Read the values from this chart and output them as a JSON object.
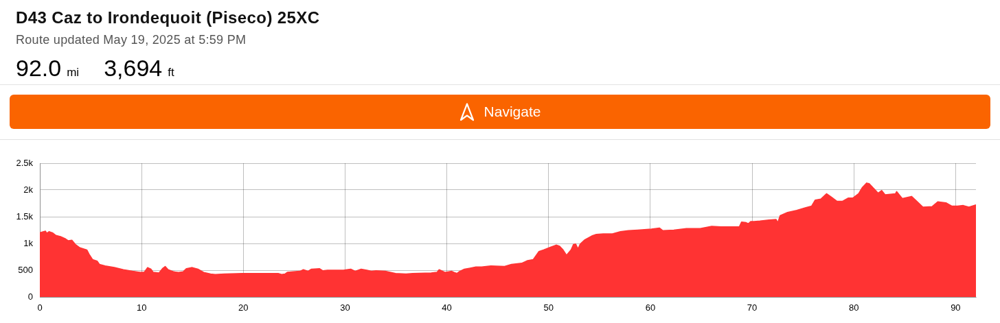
{
  "chart_data": {
    "type": "area",
    "title": "D43 Caz to Irondequoit (Piseco) 25XC",
    "subtitle": "Route updated May 19, 2025 at 5:59 PM",
    "annotations": [
      "92.0 mi",
      "3,694 ft",
      "Navigate"
    ],
    "x": [
      0,
      0.56,
      0.68,
      0.9,
      1.24,
      1.58,
      2.03,
      2.48,
      2.8,
      3.15,
      3.5,
      3.94,
      4.62,
      4.84,
      5.18,
      5.63,
      5.86,
      6.42,
      7.32,
      8.22,
      9.12,
      9.91,
      10.25,
      10.59,
      10.92,
      11.15,
      11.71,
      12.05,
      12.32,
      12.61,
      13.18,
      13.63,
      14.08,
      14.41,
      14.98,
      15.54,
      16.1,
      16.78,
      17.23,
      18.13,
      19.93,
      23.42,
      23.76,
      24.1,
      24.32,
      24.89,
      25.56,
      25.9,
      26.35,
      26.69,
      27.48,
      27.82,
      28.27,
      29.84,
      30.56,
      31.01,
      31.58,
      32.14,
      32.59,
      33.04,
      33.95,
      34.96,
      35.98,
      36.65,
      38.46,
      39.02,
      39.24,
      39.47,
      39.81,
      40.48,
      40.71,
      41.0,
      41.27,
      41.72,
      42.29,
      42.85,
      43.42,
      44.32,
      45.67,
      46.35,
      47.36,
      47.93,
      48.49,
      49.05,
      49.5,
      50.18,
      50.74,
      51.08,
      51.42,
      51.76,
      52.21,
      52.44,
      52.66,
      52.89,
      53.11,
      53.56,
      54.24,
      54.69,
      55.37,
      56.27,
      57.06,
      57.85,
      58.75,
      60.1,
      60.89,
      61.23,
      62.3,
      63.54,
      64.9,
      66.03,
      66.93,
      68.74,
      68.96,
      69.41,
      69.64,
      69.86,
      70.2,
      70.77,
      71.67,
      72.35,
      72.53,
      72.75,
      73.48,
      74.38,
      75.28,
      75.85,
      76.19,
      76.75,
      77.31,
      77.77,
      78.33,
      78.89,
      79.46,
      79.91,
      80.47,
      80.81,
      81.26,
      81.49,
      82.05,
      82.39,
      82.73,
      83.07,
      84.09,
      84.2,
      84.76,
      85.21,
      85.67,
      86.12,
      86.79,
      87.7,
      88.26,
      89.05,
      89.62,
      90.18,
      90.75,
      91.31,
      92
    ],
    "values": [
      1200,
      1230,
      1190,
      1220,
      1200,
      1150,
      1130,
      1090,
      1050,
      1060,
      980,
      920,
      880,
      800,
      700,
      670,
      610,
      580,
      550,
      510,
      480,
      460,
      460,
      550,
      520,
      460,
      450,
      530,
      570,
      510,
      470,
      460,
      470,
      530,
      550,
      520,
      460,
      430,
      420,
      430,
      440,
      440,
      420,
      430,
      460,
      470,
      480,
      510,
      480,
      520,
      530,
      490,
      500,
      500,
      520,
      480,
      520,
      500,
      480,
      490,
      480,
      440,
      430,
      440,
      450,
      460,
      510,
      490,
      460,
      480,
      460,
      440,
      480,
      520,
      540,
      560,
      560,
      580,
      570,
      610,
      630,
      680,
      700,
      850,
      880,
      930,
      970,
      950,
      880,
      780,
      880,
      980,
      990,
      900,
      990,
      1070,
      1140,
      1170,
      1180,
      1180,
      1220,
      1240,
      1250,
      1270,
      1290,
      1240,
      1250,
      1280,
      1280,
      1320,
      1310,
      1310,
      1400,
      1390,
      1370,
      1410,
      1410,
      1420,
      1440,
      1450,
      1390,
      1520,
      1580,
      1620,
      1670,
      1700,
      1810,
      1830,
      1930,
      1870,
      1790,
      1790,
      1850,
      1850,
      1930,
      2040,
      2130,
      2120,
      2010,
      1940,
      1990,
      1910,
      1930,
      1970,
      1840,
      1860,
      1880,
      1800,
      1680,
      1690,
      1780,
      1760,
      1700,
      1700,
      1710,
      1680,
      1720
    ],
    "color": "#ff3333",
    "xlim": [
      0,
      92
    ],
    "xticks": [
      0,
      10,
      20,
      30,
      40,
      50,
      60,
      70,
      80,
      90
    ],
    "ylim": [
      0,
      2500
    ],
    "yticks": [
      0,
      500,
      {
        "value": 1000,
        "label": "1k"
      },
      {
        "value": 1500,
        "label": "1.5k"
      },
      {
        "value": 2000,
        "label": "2k"
      },
      {
        "value": 2500,
        "label": "2.5k"
      }
    ],
    "grid": true,
    "legend": false,
    "marker": "none",
    "line_style": "solid"
  }
}
